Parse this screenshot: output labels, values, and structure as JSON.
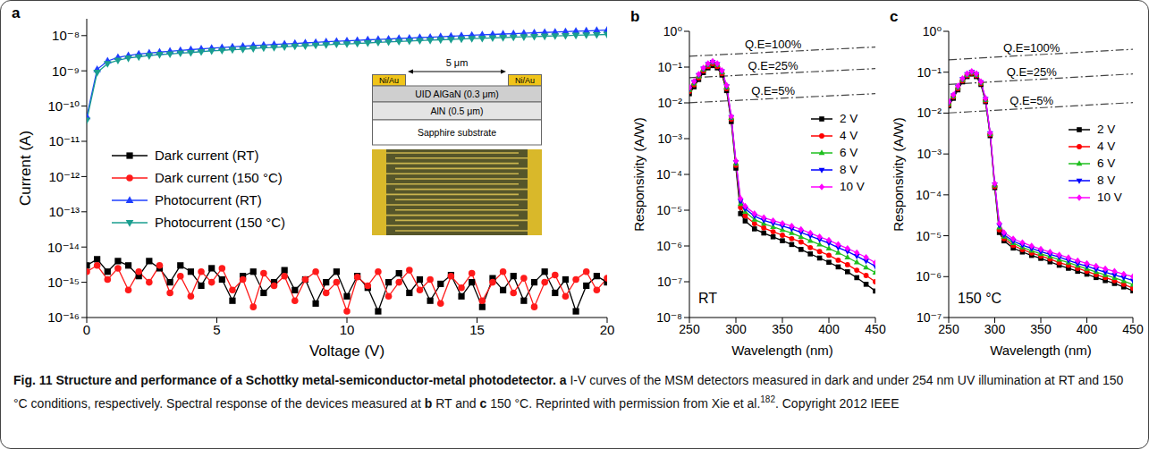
{
  "chart_data": [
    {
      "panel": "a",
      "type": "line",
      "x_label": "Voltage (V)",
      "y_label": "Current (A)",
      "log": "y",
      "grid": false,
      "legend": "left",
      "xlim": [
        0,
        20
      ],
      "xticks": [
        0,
        5,
        10,
        15,
        20
      ],
      "ylim": [
        1e-16,
        3e-08
      ],
      "yticks": [
        {
          "value": 1e-16,
          "label": "10⁻¹⁶"
        },
        {
          "value": 1e-15,
          "label": "10⁻¹⁵"
        },
        {
          "value": 1e-14,
          "label": "10⁻¹⁴"
        },
        {
          "value": 1e-13,
          "label": "10⁻¹³"
        },
        {
          "value": 1e-12,
          "label": "10⁻¹²"
        },
        {
          "value": 1e-11,
          "label": "10⁻¹¹"
        },
        {
          "value": 1e-10,
          "label": "10⁻¹⁰"
        },
        {
          "value": 1e-09,
          "label": "10⁻⁹"
        },
        {
          "value": 1e-08,
          "label": "10⁻⁸"
        }
      ],
      "x": [
        0,
        0.4,
        0.8,
        1.2,
        1.6,
        2,
        2.4,
        2.8,
        3.2,
        3.6,
        4,
        4.4,
        4.8,
        5.2,
        5.6,
        6,
        6.4,
        6.8,
        7.2,
        7.6,
        8,
        8.4,
        8.8,
        9.2,
        9.6,
        10,
        10.4,
        10.8,
        11.2,
        11.6,
        12,
        12.4,
        12.8,
        13.2,
        13.6,
        14,
        14.4,
        14.8,
        15.2,
        15.6,
        16,
        16.4,
        16.8,
        17.2,
        17.6,
        18,
        18.4,
        18.8,
        19.2,
        19.6,
        20
      ],
      "series": [
        {
          "name": "Dark current (RT)",
          "color": "#000000",
          "marker": "square",
          "line_style": "solid",
          "values": [
            3e-15,
            4.5e-15,
            2e-15,
            4e-15,
            3e-15,
            1.5e-15,
            4e-15,
            2.5e-15,
            1e-15,
            3e-15,
            2e-15,
            8e-16,
            2.5e-15,
            1.2e-15,
            3e-16,
            1.5e-15,
            2e-15,
            5e-16,
            1e-15,
            2.2e-15,
            6e-16,
            1.2e-15,
            2.5e-16,
            1e-15,
            2e-15,
            4e-16,
            1.5e-15,
            7e-16,
            1.5e-16,
            1e-15,
            1.8e-15,
            5e-16,
            1.2e-15,
            3e-16,
            9e-16,
            1.6e-15,
            4e-16,
            1e-15,
            2e-16,
            1.3e-15,
            6e-16,
            1.5e-15,
            3e-16,
            1e-15,
            2e-15,
            5e-16,
            1.2e-15,
            1.5e-16,
            8e-16,
            1.5e-15,
            1e-15
          ]
        },
        {
          "name": "Dark current (150 °C)",
          "color": "#ff1a1a",
          "marker": "circle",
          "line_style": "solid",
          "values": [
            2e-15,
            3e-15,
            1.2e-15,
            2.5e-15,
            6e-16,
            2e-15,
            1e-15,
            3e-15,
            5e-16,
            1.5e-15,
            4e-16,
            2e-15,
            1e-15,
            2.5e-15,
            6e-16,
            1.2e-15,
            2e-16,
            1.8e-15,
            8e-16,
            1.5e-15,
            3e-16,
            1.2e-15,
            2e-15,
            5e-16,
            1e-15,
            1.5e-16,
            1.4e-15,
            8e-16,
            2e-15,
            4e-16,
            1e-15,
            2.2e-15,
            6e-16,
            1.2e-15,
            2.5e-16,
            1.5e-15,
            7e-16,
            1.8e-15,
            3e-16,
            1e-15,
            2e-15,
            5e-16,
            1.3e-15,
            2e-16,
            1e-15,
            1.6e-15,
            4e-16,
            1.2e-15,
            2e-15,
            6e-16,
            1.3e-15
          ]
        },
        {
          "name": "Photocurrent (RT)",
          "color": "#1f3fff",
          "marker": "triangle-up",
          "line_style": "solid",
          "values": [
            5e-11,
            1.1e-09,
            1.9e-09,
            2.4e-09,
            2.7e-09,
            3e-09,
            3.2e-09,
            3.4e-09,
            3.6e-09,
            3.8e-09,
            4e-09,
            4.2e-09,
            4.4e-09,
            4.6e-09,
            4.8e-09,
            5e-09,
            5.2e-09,
            5.4e-09,
            5.6e-09,
            5.8e-09,
            6e-09,
            6.2e-09,
            6.4e-09,
            6.7e-09,
            6.9e-09,
            7.1e-09,
            7.3e-09,
            7.6e-09,
            7.8e-09,
            8e-09,
            8.3e-09,
            8.5e-09,
            8.8e-09,
            9e-09,
            9.3e-09,
            9.6e-09,
            9.9e-09,
            1.02e-08,
            1.05e-08,
            1.08e-08,
            1.11e-08,
            1.14e-08,
            1.17e-08,
            1.2e-08,
            1.23e-08,
            1.26e-08,
            1.29e-08,
            1.33e-08,
            1.36e-08,
            1.4e-08,
            1.43e-08
          ]
        },
        {
          "name": "Photocurrent (150 °C)",
          "color": "#1a9e8f",
          "marker": "triangle-down",
          "line_style": "solid",
          "values": [
            4e-11,
            9e-10,
            1.6e-09,
            2e-09,
            2.3e-09,
            2.5e-09,
            2.7e-09,
            2.9e-09,
            3e-09,
            3.2e-09,
            3.3e-09,
            3.5e-09,
            3.7e-09,
            3.8e-09,
            4e-09,
            4.1e-09,
            4.3e-09,
            4.5e-09,
            4.6e-09,
            4.8e-09,
            5e-09,
            5.1e-09,
            5.3e-09,
            5.5e-09,
            5.7e-09,
            5.8e-09,
            6e-09,
            6.2e-09,
            6.4e-09,
            6.6e-09,
            6.8e-09,
            7e-09,
            7.2e-09,
            7.4e-09,
            7.6e-09,
            7.8e-09,
            8e-09,
            8.2e-09,
            8.4e-09,
            8.6e-09,
            8.8e-09,
            9e-09,
            9.2e-09,
            9.4e-09,
            9.6e-09,
            9.8e-09,
            1e-08,
            1.02e-08,
            1.04e-08,
            1.06e-08,
            1.08e-08
          ]
        }
      ],
      "inset": {
        "dimension": "5 μm",
        "electrodes": [
          "Ni/Au",
          "Ni/Au"
        ],
        "layers": [
          "UID AlGaN (0.3 μm)",
          "AlN (0.5 μm)",
          "Sapphire substrate"
        ]
      }
    },
    {
      "panel": "b",
      "type": "line",
      "annotation": "RT",
      "x_label": "Wavelength (nm)",
      "y_label": "Responsivity (A/W)",
      "log": "y",
      "grid": false,
      "legend": "right",
      "xlim": [
        250,
        450
      ],
      "xticks": [
        250,
        300,
        350,
        400,
        450
      ],
      "ylim": [
        1e-08,
        1
      ],
      "yticks": [
        {
          "value": 1e-08,
          "label": "10⁻⁸"
        },
        {
          "value": 1e-07,
          "label": "10⁻⁷"
        },
        {
          "value": 1e-06,
          "label": "10⁻⁶"
        },
        {
          "value": 1e-05,
          "label": "10⁻⁵"
        },
        {
          "value": 0.0001,
          "label": "10⁻⁴"
        },
        {
          "value": 0.001,
          "label": "10⁻³"
        },
        {
          "value": 0.01,
          "label": "10⁻²"
        },
        {
          "value": 0.1,
          "label": "10⁻¹"
        },
        {
          "value": 1,
          "label": "10⁰"
        }
      ],
      "x": [
        250,
        255,
        260,
        265,
        270,
        275,
        280,
        285,
        290,
        295,
        300,
        305,
        310,
        320,
        330,
        340,
        350,
        360,
        370,
        380,
        390,
        400,
        410,
        420,
        430,
        440,
        450
      ],
      "series": [
        {
          "name": "2 V",
          "color": "#000000",
          "marker": "square",
          "line_style": "solid",
          "values": [
            0.018,
            0.028,
            0.045,
            0.07,
            0.095,
            0.11,
            0.095,
            0.06,
            0.022,
            0.003,
            0.00015,
            8e-06,
            5e-06,
            3e-06,
            2.3e-06,
            1.8e-06,
            1.4e-06,
            1.1e-06,
            8e-07,
            6e-07,
            4.6e-07,
            3.5e-07,
            2.6e-07,
            1.9e-07,
            1.3e-07,
            8.5e-08,
            5.5e-08
          ]
        },
        {
          "name": "4 V",
          "color": "#ff0000",
          "marker": "circle",
          "line_style": "solid",
          "values": [
            0.021,
            0.032,
            0.05,
            0.078,
            0.105,
            0.125,
            0.105,
            0.066,
            0.025,
            0.0035,
            0.00018,
            1.2e-05,
            7e-06,
            4.2e-06,
            3.2e-06,
            2.5e-06,
            2e-06,
            1.6e-06,
            1.3e-06,
            9e-07,
            7e-07,
            5.5e-07,
            4e-07,
            3e-07,
            2.1e-07,
            1.5e-07,
            1e-07
          ]
        },
        {
          "name": "6 V",
          "color": "#1fbf1f",
          "marker": "triangle-up",
          "line_style": "solid",
          "values": [
            0.023,
            0.035,
            0.055,
            0.085,
            0.115,
            0.135,
            0.115,
            0.072,
            0.027,
            0.0038,
            0.0002,
            1.5e-05,
            9e-06,
            5.5e-06,
            4.2e-06,
            3.4e-06,
            2.8e-06,
            2.3e-06,
            1.8e-06,
            1.4e-06,
            1.1e-06,
            8.5e-07,
            6.5e-07,
            4.8e-07,
            3.5e-07,
            2.5e-07,
            1.8e-07
          ]
        },
        {
          "name": "8 V",
          "color": "#0000ff",
          "marker": "triangle-down",
          "line_style": "solid",
          "values": [
            0.025,
            0.038,
            0.06,
            0.09,
            0.12,
            0.14,
            0.12,
            0.076,
            0.029,
            0.004,
            0.00022,
            1.8e-05,
            1.1e-05,
            6.8e-06,
            5.2e-06,
            4.3e-06,
            3.6e-06,
            3e-06,
            2.4e-06,
            1.9e-06,
            1.5e-06,
            1.2e-06,
            9e-07,
            7e-07,
            5.2e-07,
            3.8e-07,
            2.7e-07
          ]
        },
        {
          "name": "10 V",
          "color": "#ff00ff",
          "marker": "diamond",
          "line_style": "solid",
          "values": [
            0.027,
            0.04,
            0.063,
            0.094,
            0.125,
            0.145,
            0.125,
            0.08,
            0.031,
            0.0042,
            0.00024,
            2.1e-05,
            1.3e-05,
            8e-06,
            6.2e-06,
            5.1e-06,
            4.3e-06,
            3.6e-06,
            2.9e-06,
            2.3e-06,
            1.8e-06,
            1.45e-06,
            1.1e-06,
            8.5e-07,
            6.5e-07,
            4.8e-07,
            3.4e-07
          ]
        }
      ],
      "reference_lines": [
        {
          "name": "Q.E=100%",
          "color": "#444444",
          "line_style": "dashdot",
          "x": [
            250,
            450
          ],
          "values": [
            0.2016,
            0.3629
          ]
        },
        {
          "name": "Q.E=25%",
          "color": "#444444",
          "line_style": "dashdot",
          "x": [
            250,
            450
          ],
          "values": [
            0.0504,
            0.0907
          ]
        },
        {
          "name": "Q.E=5%",
          "color": "#444444",
          "line_style": "dashdot",
          "x": [
            250,
            450
          ],
          "values": [
            0.0101,
            0.0181
          ]
        }
      ]
    },
    {
      "panel": "c",
      "type": "line",
      "annotation": "150 °C",
      "x_label": "Wavelength (nm)",
      "y_label": "Responsivity (A/W)",
      "log": "y",
      "grid": false,
      "legend": "right",
      "xlim": [
        250,
        450
      ],
      "xticks": [
        250,
        300,
        350,
        400,
        450
      ],
      "ylim": [
        1e-07,
        1
      ],
      "yticks": [
        {
          "value": 1e-07,
          "label": "10⁻⁷"
        },
        {
          "value": 1e-06,
          "label": "10⁻⁶"
        },
        {
          "value": 1e-05,
          "label": "10⁻⁵"
        },
        {
          "value": 0.0001,
          "label": "10⁻⁴"
        },
        {
          "value": 0.001,
          "label": "10⁻³"
        },
        {
          "value": 0.01,
          "label": "10⁻²"
        },
        {
          "value": 0.1,
          "label": "10⁻¹"
        },
        {
          "value": 1,
          "label": "10⁰"
        }
      ],
      "x": [
        250,
        255,
        260,
        265,
        270,
        275,
        280,
        285,
        290,
        295,
        300,
        305,
        310,
        320,
        330,
        340,
        350,
        360,
        370,
        380,
        390,
        400,
        410,
        420,
        430,
        440,
        450
      ],
      "series": [
        {
          "name": "2 V",
          "color": "#000000",
          "marker": "square",
          "line_style": "solid",
          "values": [
            0.015,
            0.023,
            0.037,
            0.058,
            0.078,
            0.09,
            0.078,
            0.05,
            0.019,
            0.0028,
            0.00015,
            1.2e-05,
            7.5e-06,
            5e-06,
            4e-06,
            3.3e-06,
            2.8e-06,
            2.3e-06,
            1.9e-06,
            1.6e-06,
            1.35e-06,
            1.15e-06,
            9.5e-07,
            8e-07,
            6.8e-07,
            5.6e-07,
            4.5e-07
          ]
        },
        {
          "name": "4 V",
          "color": "#ff0000",
          "marker": "circle",
          "line_style": "solid",
          "values": [
            0.016,
            0.025,
            0.04,
            0.062,
            0.083,
            0.095,
            0.083,
            0.053,
            0.02,
            0.003,
            0.00016,
            1.4e-05,
            8.5e-06,
            5.8e-06,
            4.6e-06,
            3.8e-06,
            3.2e-06,
            2.7e-06,
            2.2e-06,
            1.9e-06,
            1.6e-06,
            1.35e-06,
            1.12e-06,
            9.5e-07,
            8e-07,
            6.5e-07,
            5.2e-07
          ]
        },
        {
          "name": "6 V",
          "color": "#1fbf1f",
          "marker": "triangle-up",
          "line_style": "solid",
          "values": [
            0.017,
            0.026,
            0.042,
            0.065,
            0.086,
            0.099,
            0.086,
            0.055,
            0.021,
            0.0031,
            0.00017,
            1.6e-05,
            9.5e-06,
            6.6e-06,
            5.2e-06,
            4.3e-06,
            3.6e-06,
            3.1e-06,
            2.6e-06,
            2.2e-06,
            1.85e-06,
            1.55e-06,
            1.3e-06,
            1.1e-06,
            9.3e-07,
            7.8e-07,
            6.4e-07
          ]
        },
        {
          "name": "8 V",
          "color": "#0000ff",
          "marker": "triangle-down",
          "line_style": "solid",
          "values": [
            0.018,
            0.027,
            0.044,
            0.068,
            0.089,
            0.102,
            0.089,
            0.057,
            0.022,
            0.0032,
            0.00018,
            1.8e-05,
            1.05e-05,
            7.4e-06,
            5.9e-06,
            4.9e-06,
            4.1e-06,
            3.5e-06,
            3e-06,
            2.5e-06,
            2.1e-06,
            1.8e-06,
            1.5e-06,
            1.28e-06,
            1.1e-06,
            9.5e-07,
            8e-07
          ]
        },
        {
          "name": "10 V",
          "color": "#ff00ff",
          "marker": "diamond",
          "line_style": "solid",
          "values": [
            0.019,
            0.028,
            0.046,
            0.07,
            0.092,
            0.105,
            0.092,
            0.059,
            0.023,
            0.0033,
            0.00019,
            2e-05,
            1.2e-05,
            8.4e-06,
            6.8e-06,
            5.6e-06,
            4.7e-06,
            4e-06,
            3.4e-06,
            2.9e-06,
            2.45e-06,
            2.1e-06,
            1.8e-06,
            1.55e-06,
            1.35e-06,
            1.15e-06,
            1e-06
          ]
        }
      ],
      "reference_lines": [
        {
          "name": "Q.E=100%",
          "color": "#444444",
          "line_style": "dashdot",
          "x": [
            250,
            450
          ],
          "values": [
            0.2016,
            0.3629
          ]
        },
        {
          "name": "Q.E=25%",
          "color": "#444444",
          "line_style": "dashdot",
          "x": [
            250,
            450
          ],
          "values": [
            0.0504,
            0.0907
          ]
        },
        {
          "name": "Q.E=5%",
          "color": "#444444",
          "line_style": "dashdot",
          "x": [
            250,
            450
          ],
          "values": [
            0.0101,
            0.0181
          ]
        }
      ]
    }
  ],
  "caption": {
    "parts": [
      {
        "text": "Fig. 11 Structure and performance of a Schottky metal-semiconductor-metal photodetector.",
        "style": "bold"
      },
      {
        "text": "a",
        "style": "bold"
      },
      {
        "text": "I-V curves of the MSM detectors measured in dark and under 254 nm UV illumination at RT and 150 °C conditions, respectively. Spectral response of the devices measured at",
        "style": "plain"
      },
      {
        "text": "b",
        "style": "bold"
      },
      {
        "text": "RT and",
        "style": "plain"
      },
      {
        "text": "c",
        "style": "bold"
      },
      {
        "text": "150 °C. Reprinted with permission from Xie et al.",
        "style": "plain"
      },
      {
        "text": "182",
        "style": "sup"
      },
      {
        "text": ". Copyright 2012 IEEE",
        "style": "plain"
      }
    ]
  }
}
